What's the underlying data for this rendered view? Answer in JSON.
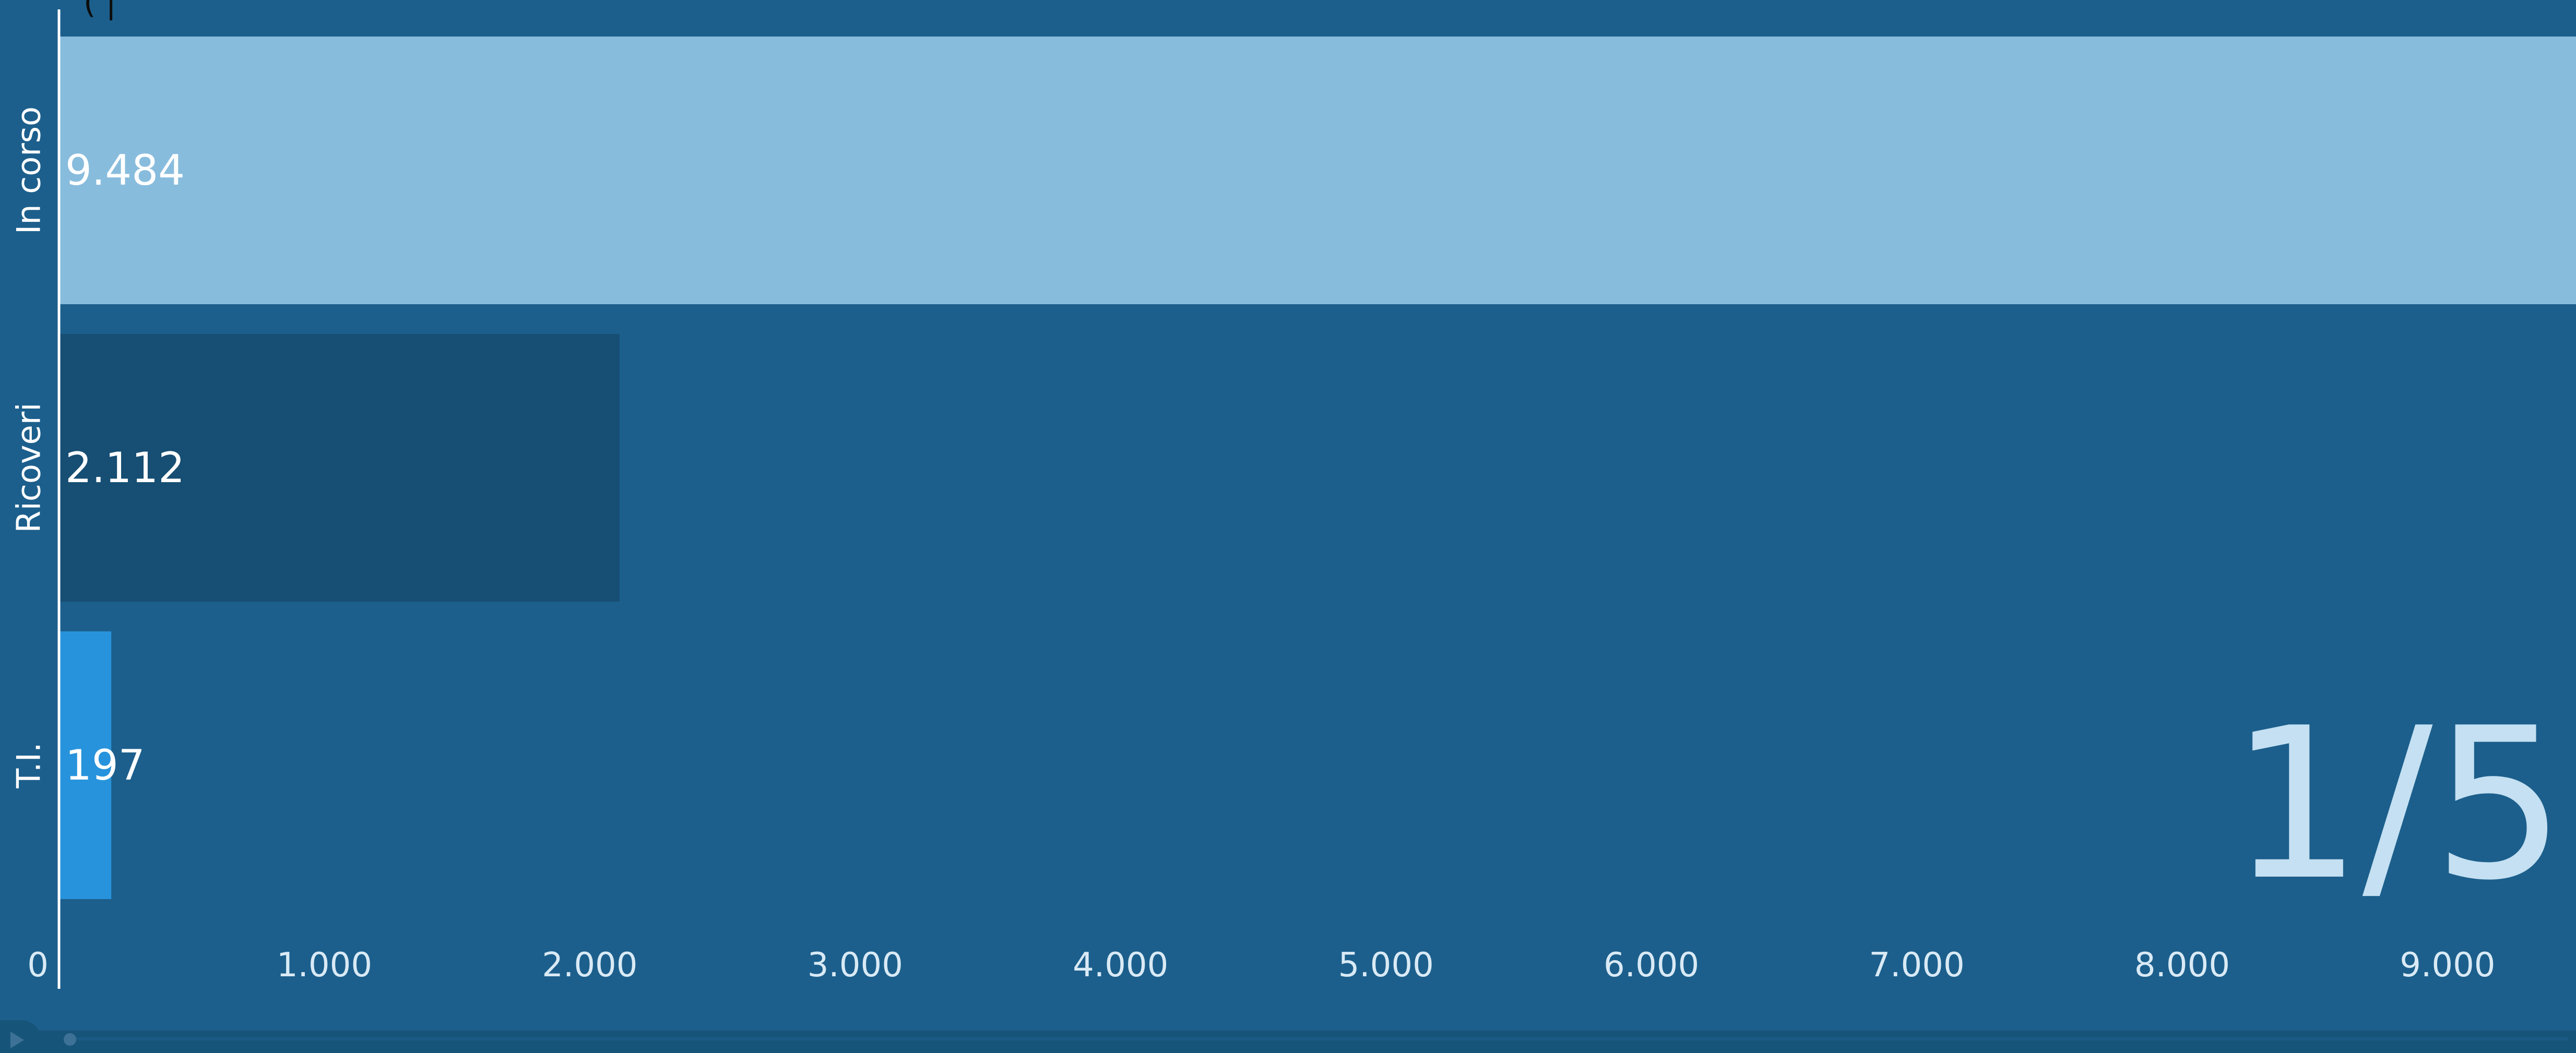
{
  "chart_data": {
    "type": "bar",
    "orientation": "horizontal",
    "categories": [
      "In corso",
      "Ricoveri",
      "T.I."
    ],
    "values": [
      9484,
      2112,
      197
    ],
    "value_labels": [
      "9.484",
      "2.112",
      "197"
    ],
    "colors": [
      "#88bcdd",
      "#174e73",
      "#2793dc"
    ],
    "xlim": [
      0,
      9484
    ],
    "xticks": [
      0,
      1000,
      2000,
      3000,
      4000,
      5000,
      6000,
      7000,
      8000,
      9000
    ],
    "xtick_labels": [
      "0",
      "1.000",
      "2.000",
      "3.000",
      "4.000",
      "5.000",
      "6.000",
      "7.000",
      "8.000",
      "9.000"
    ],
    "grid": false,
    "legend": "none",
    "step_indicator": "1/5"
  },
  "player": {
    "play_icon": "play-icon",
    "progress": 0
  },
  "header_fragment": "( |",
  "colors": {
    "background": "#1c5f8c",
    "axis": "#ffffff",
    "tick_text": "#d9eaf5",
    "step_text": "#c4e0f2"
  }
}
